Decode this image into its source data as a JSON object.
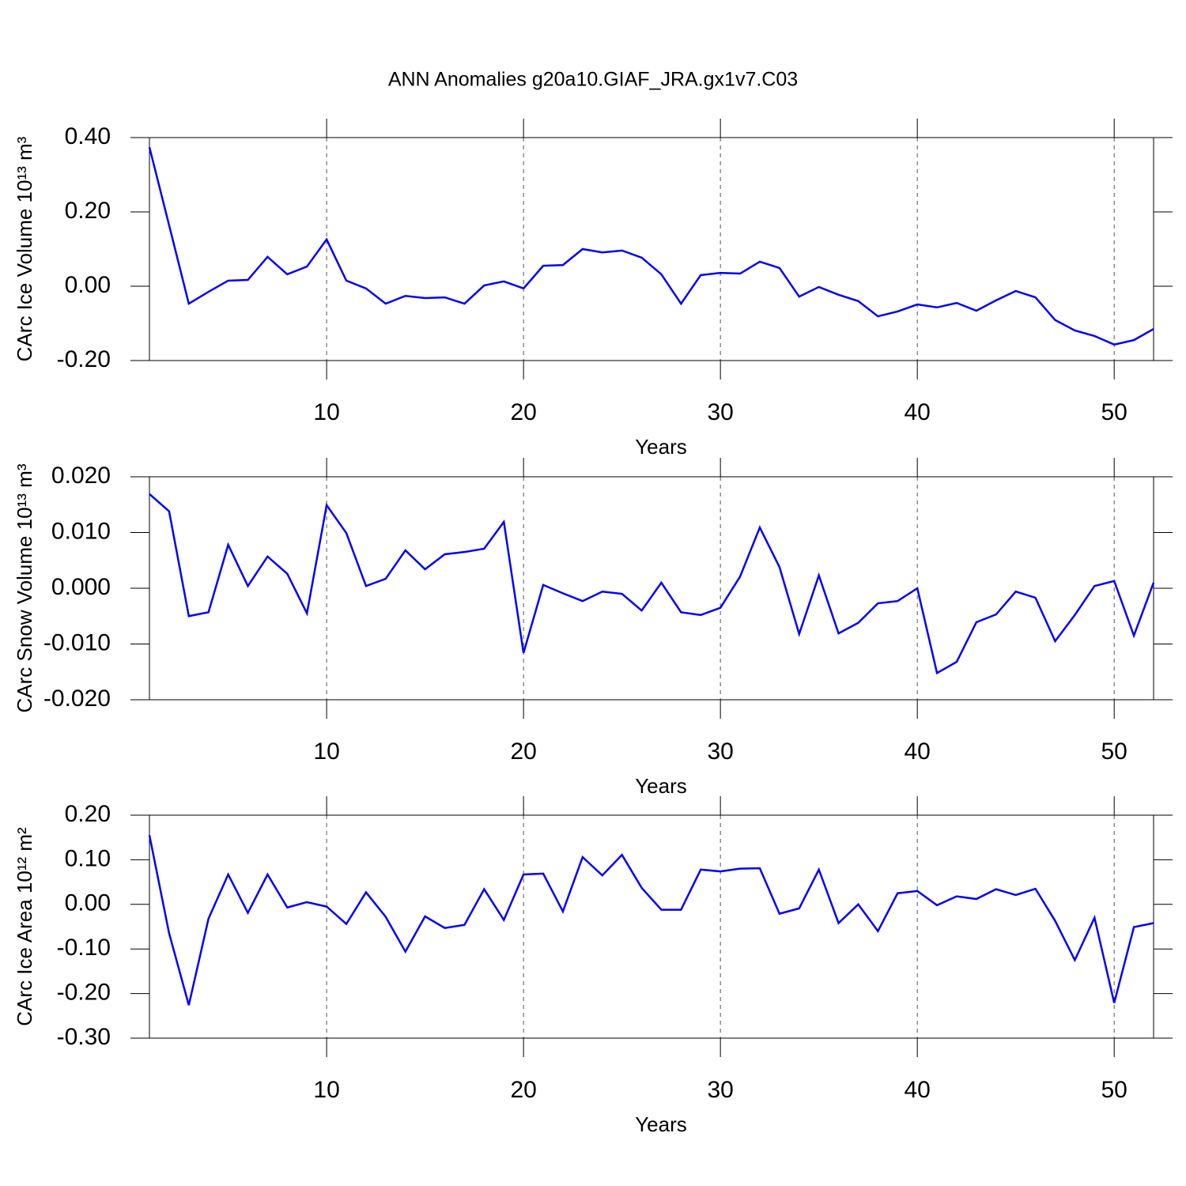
{
  "title": "ANN Anomalies g20a10.GIAF_JRA.gx1v7.C03",
  "chart_data": [
    {
      "type": "line",
      "ylabel": "CArc Ice Volume 10¹³ m³",
      "xlabel": "Years",
      "x": [
        1,
        2,
        3,
        4,
        5,
        6,
        7,
        8,
        9,
        10,
        11,
        12,
        13,
        14,
        15,
        16,
        17,
        18,
        19,
        20,
        21,
        22,
        23,
        24,
        25,
        26,
        27,
        28,
        29,
        30,
        31,
        32,
        33,
        34,
        35,
        36,
        37,
        38,
        39,
        40,
        41,
        42,
        43,
        44,
        45,
        46,
        47,
        48,
        49,
        50,
        51,
        52
      ],
      "series": [
        {
          "color": "#0000ff",
          "values": [
            0.374,
            0.164,
            -0.047,
            -0.015,
            0.015,
            0.017,
            0.079,
            0.032,
            0.053,
            0.126,
            0.015,
            -0.006,
            -0.047,
            -0.026,
            -0.032,
            -0.03,
            -0.047,
            0.002,
            0.013,
            -0.006,
            0.055,
            0.057,
            0.1,
            0.091,
            0.096,
            0.077,
            0.032,
            -0.047,
            0.03,
            0.036,
            0.034,
            0.066,
            0.049,
            -0.028,
            -0.002,
            -0.023,
            -0.04,
            -0.081,
            -0.068,
            -0.049,
            -0.057,
            -0.045,
            -0.066,
            -0.038,
            -0.013,
            -0.03,
            -0.091,
            -0.119,
            -0.134,
            -0.157,
            -0.145,
            -0.115
          ]
        }
      ],
      "xlim": [
        1,
        52
      ],
      "xticks": [
        10,
        20,
        30,
        40,
        50
      ],
      "ylim": [
        -0.2,
        0.4
      ],
      "yticks": [
        {
          "value": 0.4,
          "label": "0.40"
        },
        {
          "value": 0.2,
          "label": "0.20"
        },
        {
          "value": 0,
          "label": "0.00"
        },
        {
          "value": -0.2,
          "label": "-0.20"
        }
      ],
      "grid": "x-dashed"
    },
    {
      "type": "line",
      "ylabel": "CArc Snow Volume 10¹³ m³",
      "xlabel": "Years",
      "x": [
        1,
        2,
        3,
        4,
        5,
        6,
        7,
        8,
        9,
        10,
        11,
        12,
        13,
        14,
        15,
        16,
        17,
        18,
        19,
        20,
        21,
        22,
        23,
        24,
        25,
        26,
        27,
        28,
        29,
        30,
        31,
        32,
        33,
        34,
        35,
        36,
        37,
        38,
        39,
        40,
        41,
        42,
        43,
        44,
        45,
        46,
        47,
        48,
        49,
        50,
        51,
        52
      ],
      "series": [
        {
          "color": "#0000ff",
          "values": [
            0.0169,
            0.0138,
            -0.005,
            -0.0043,
            0.0078,
            0.0004,
            0.0057,
            0.0026,
            -0.0045,
            0.0149,
            0.0099,
            0.0004,
            0.0017,
            0.0068,
            0.0034,
            0.0061,
            0.0065,
            0.0071,
            0.0119,
            -0.0116,
            0.0006,
            -0.0009,
            -0.0023,
            -0.0006,
            -0.001,
            -0.004,
            0.001,
            -0.0043,
            -0.0048,
            -0.0035,
            0.0021,
            0.0109,
            0.0038,
            -0.0082,
            0.0023,
            -0.0081,
            -0.0062,
            -0.0027,
            -0.0023,
            0.0,
            -0.0152,
            -0.0132,
            -0.0061,
            -0.0047,
            -0.0006,
            -0.0017,
            -0.0095,
            -0.0048,
            0.0004,
            0.0013,
            -0.0085,
            0.001
          ]
        }
      ],
      "xlim": [
        1,
        52
      ],
      "xticks": [
        10,
        20,
        30,
        40,
        50
      ],
      "ylim": [
        -0.02,
        0.02
      ],
      "yticks": [
        {
          "value": 0.02,
          "label": "0.020"
        },
        {
          "value": 0.01,
          "label": "0.010"
        },
        {
          "value": 0,
          "label": "0.000"
        },
        {
          "value": -0.01,
          "label": "-0.010"
        },
        {
          "value": -0.02,
          "label": "-0.020"
        }
      ],
      "grid": "x-dashed"
    },
    {
      "type": "line",
      "ylabel": "CArc Ice Area 10¹² m²",
      "xlabel": "Years",
      "x": [
        1,
        2,
        3,
        4,
        5,
        6,
        7,
        8,
        9,
        10,
        11,
        12,
        13,
        14,
        15,
        16,
        17,
        18,
        19,
        20,
        21,
        22,
        23,
        24,
        25,
        26,
        27,
        28,
        29,
        30,
        31,
        32,
        33,
        34,
        35,
        36,
        37,
        38,
        39,
        40,
        41,
        42,
        43,
        44,
        45,
        46,
        47,
        48,
        49,
        50,
        51,
        52
      ],
      "series": [
        {
          "color": "#0000ff",
          "values": [
            0.155,
            -0.065,
            -0.226,
            -0.032,
            0.067,
            -0.019,
            0.067,
            -0.007,
            0.005,
            -0.005,
            -0.044,
            0.027,
            -0.028,
            -0.106,
            -0.027,
            -0.053,
            -0.046,
            0.034,
            -0.035,
            0.067,
            0.069,
            -0.016,
            0.106,
            0.065,
            0.111,
            0.037,
            -0.012,
            -0.012,
            0.078,
            0.074,
            0.08,
            0.081,
            -0.021,
            -0.009,
            0.078,
            -0.042,
            0.0,
            -0.06,
            0.025,
            0.03,
            -0.002,
            0.018,
            0.012,
            0.034,
            0.021,
            0.035,
            -0.037,
            -0.125,
            -0.03,
            -0.221,
            -0.051,
            -0.042
          ]
        }
      ],
      "xlim": [
        1,
        52
      ],
      "xticks": [
        10,
        20,
        30,
        40,
        50
      ],
      "ylim": [
        -0.3,
        0.2
      ],
      "yticks": [
        {
          "value": 0.2,
          "label": "0.20"
        },
        {
          "value": 0.1,
          "label": "0.10"
        },
        {
          "value": 0,
          "label": "0.00"
        },
        {
          "value": -0.1,
          "label": "-0.10"
        },
        {
          "value": -0.2,
          "label": "-0.20"
        },
        {
          "value": -0.3,
          "label": "-0.30"
        }
      ],
      "grid": "x-dashed"
    }
  ]
}
